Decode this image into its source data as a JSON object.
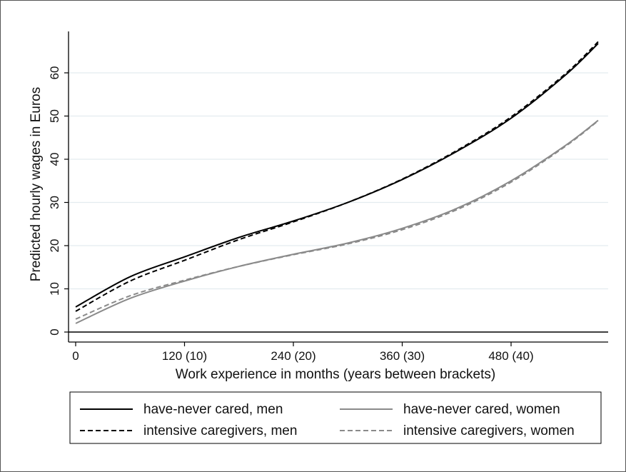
{
  "chart_data": {
    "type": "line",
    "title": "",
    "xlabel": "Work experience in months (years between brackets)",
    "ylabel": "Predicted hourly wages in Euros",
    "xlim": [
      0,
      576
    ],
    "ylim": [
      0,
      70
    ],
    "x_ticks": [
      {
        "value": 0,
        "label": "0"
      },
      {
        "value": 120,
        "label": "120 (10)"
      },
      {
        "value": 240,
        "label": "240 (20)"
      },
      {
        "value": 360,
        "label": "360 (30)"
      },
      {
        "value": 480,
        "label": "480 (40)"
      }
    ],
    "y_ticks": [
      {
        "value": 0,
        "label": "0"
      },
      {
        "value": 10,
        "label": "10"
      },
      {
        "value": 20,
        "label": "20"
      },
      {
        "value": 30,
        "label": "30"
      },
      {
        "value": 40,
        "label": "40"
      },
      {
        "value": 50,
        "label": "50"
      },
      {
        "value": 60,
        "label": "60"
      }
    ],
    "grid": "horizontal",
    "legend_position": "bottom",
    "x": [
      0,
      60,
      120,
      180,
      240,
      300,
      360,
      420,
      480,
      540,
      576
    ],
    "series": [
      {
        "name": "have-never cared, men",
        "color": "#000000",
        "dash": "solid",
        "values": [
          5.8,
          12.8,
          17.4,
          21.9,
          25.7,
          30.0,
          35.3,
          41.8,
          49.5,
          59.5,
          66.8
        ]
      },
      {
        "name": "have-never cared, women",
        "color": "#8a8a8a",
        "dash": "solid",
        "values": [
          2.0,
          7.8,
          11.8,
          15.2,
          18.0,
          20.6,
          24.0,
          28.6,
          35.0,
          43.2,
          49.0
        ]
      },
      {
        "name": "intensive caregivers, men",
        "color": "#000000",
        "dash": "dashed",
        "values": [
          4.8,
          11.8,
          16.6,
          21.4,
          25.5,
          30.0,
          35.4,
          42.0,
          49.8,
          59.8,
          67.2
        ]
      },
      {
        "name": "intensive caregivers, women",
        "color": "#8a8a8a",
        "dash": "dashed",
        "values": [
          3.0,
          8.4,
          12.0,
          15.2,
          17.9,
          20.4,
          23.7,
          28.3,
          34.7,
          43.0,
          48.9
        ]
      }
    ]
  }
}
